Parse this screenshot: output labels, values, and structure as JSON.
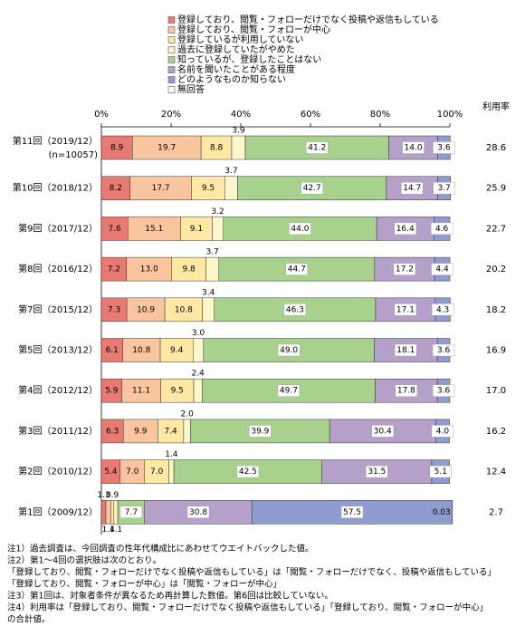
{
  "chart_data": {
    "type": "stacked-bar-horizontal",
    "categories": [
      "第11回（2019/12）",
      "第10回（2018/12）",
      "第9回（2017/12）",
      "第8回（2016/12）",
      "第7回（2015/12）",
      "第5回（2013/12）",
      "第4回（2012/12）",
      "第3回（2011/12）",
      "第2回（2010/12）",
      "第1回（2009/12）"
    ],
    "sample_size_label": "(n=10057)",
    "series": [
      {
        "name": "登録しており、閲覧・フォローだけでなく投稿や返信もしている",
        "color": "#e97a73",
        "values": [
          8.9,
          8.2,
          7.6,
          7.2,
          7.3,
          6.1,
          5.9,
          6.3,
          5.4,
          1.3
        ],
        "value_labels": [
          "8.9",
          "8.2",
          "7.6",
          "7.2",
          "7.3",
          "6.1",
          "5.9",
          "6.3",
          "5.4",
          "1.3"
        ]
      },
      {
        "name": "登録しており、閲覧・フォローが中心",
        "color": "#f9c59e",
        "values": [
          19.7,
          17.7,
          15.1,
          13.0,
          10.9,
          10.8,
          11.1,
          9.9,
          7.0,
          1.4
        ],
        "value_labels": [
          "19.7",
          "17.7",
          "15.1",
          "13.0",
          "10.9",
          "10.8",
          "11.1",
          "9.9",
          "7.0",
          "1.4"
        ]
      },
      {
        "name": "登録しているが利用していない",
        "color": "#ffe8a3",
        "values": [
          8.8,
          9.5,
          9.1,
          9.8,
          10.8,
          9.4,
          9.5,
          7.4,
          7.0,
          0.9
        ],
        "value_labels": [
          "8.8",
          "9.5",
          "9.1",
          "9.8",
          "10.8",
          "9.4",
          "9.5",
          "7.4",
          "7.0",
          "0.9"
        ]
      },
      {
        "name": "過去に登録していたがやめた",
        "color": "#fff7cc",
        "values": [
          3.9,
          3.7,
          3.2,
          3.7,
          3.4,
          3.0,
          2.4,
          2.0,
          1.4,
          1.1
        ],
        "value_labels": [
          "3.9",
          "3.7",
          "3.2",
          "3.7",
          "3.4",
          "3.0",
          "2.4",
          "2.0",
          "1.4",
          "1.1"
        ]
      },
      {
        "name": "知っているが、登録したことはない",
        "color": "#a9d18e",
        "values": [
          41.2,
          42.7,
          44.0,
          44.7,
          46.3,
          49.0,
          49.7,
          39.9,
          42.5,
          7.7
        ],
        "value_labels": [
          "41.2",
          "42.7",
          "44.0",
          "44.7",
          "46.3",
          "49.0",
          "49.7",
          "39.9",
          "42.5",
          "7.7"
        ]
      },
      {
        "name": "名前を聞いたことがある程度",
        "color": "#b4a0c8",
        "values": [
          14.0,
          14.7,
          16.4,
          17.2,
          17.1,
          18.1,
          17.8,
          30.4,
          31.5,
          30.8
        ],
        "value_labels": [
          "14.0",
          "14.7",
          "16.4",
          "17.2",
          "17.1",
          "18.1",
          "17.8",
          "30.4",
          "31.5",
          "30.8"
        ]
      },
      {
        "name": "どのようなものか知らない",
        "color": "#8f9ccf",
        "values": [
          3.6,
          3.7,
          4.6,
          4.4,
          4.3,
          3.6,
          3.6,
          4.0,
          5.1,
          57.5
        ],
        "value_labels": [
          "3.6",
          "3.7",
          "4.6",
          "4.4",
          "4.3",
          "3.6",
          "3.6",
          "4.0",
          "5.1",
          "57.5"
        ]
      },
      {
        "name": "無回答",
        "color": "#ffffff",
        "values": [
          null,
          null,
          null,
          null,
          null,
          null,
          null,
          null,
          null,
          0.03
        ],
        "value_labels": [
          null,
          null,
          null,
          null,
          null,
          null,
          null,
          null,
          null,
          "0.03"
        ]
      }
    ],
    "xlim": [
      0,
      100
    ],
    "xticks": [
      {
        "value": 0,
        "label": "0%"
      },
      {
        "value": 20,
        "label": "20%"
      },
      {
        "value": 40,
        "label": "40%"
      },
      {
        "value": 60,
        "label": "60%"
      },
      {
        "value": 80,
        "label": "80%"
      },
      {
        "value": 100,
        "label": "100%"
      }
    ],
    "usage_rate": {
      "title": "利用率",
      "values": [
        28.6,
        25.9,
        22.7,
        20.2,
        18.2,
        16.9,
        17.0,
        16.2,
        12.4,
        2.7
      ],
      "value_labels": [
        "28.6",
        "25.9",
        "22.7",
        "20.2",
        "18.2",
        "16.9",
        "17.0",
        "16.2",
        "12.4",
        "2.7"
      ]
    },
    "notes": [
      "注1）過去調査は、今回調査の性年代構成比にあわせてウエイトバックした値。",
      "注2）第1～4回の選択肢は次のとおり。",
      "「登録しており、閲覧・フォローだけでなく投稿や返信もしている」は「閲覧・フォローだけでなく、投稿や返信もしている」",
      "「登録しており、閲覧・フォローが中心」は「閲覧・フォローが中心」",
      "注3）第1回は、対象者条件が異なるため再計算した数値。第6回は比較していない。",
      "注4）利用率は「登録しており、閲覧・フォローだけでなく投稿や返信もしている」「登録しており、閲覧・フォローが中心」",
      "の合計値。"
    ]
  }
}
